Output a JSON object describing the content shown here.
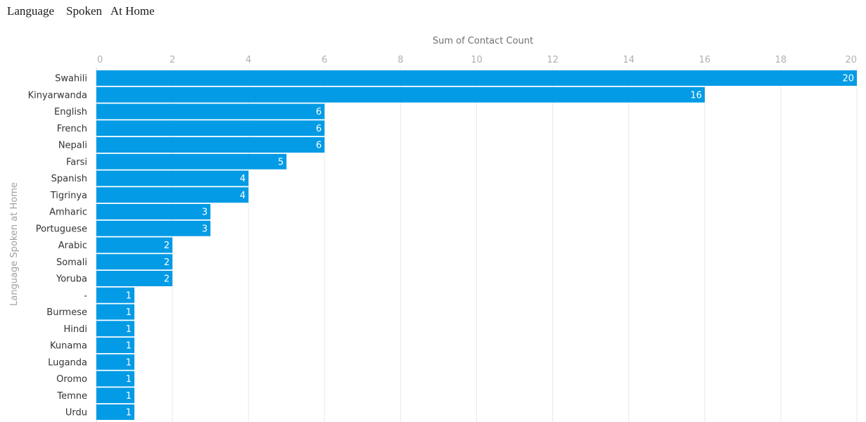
{
  "page": {
    "title": "Language    Spoken   At Home"
  },
  "chart_data": {
    "type": "bar",
    "orientation": "horizontal",
    "title": "",
    "xlabel": "Sum of Contact Count",
    "ylabel": "Language Spoken at Home",
    "xlim": [
      0,
      20
    ],
    "xticks": [
      0,
      2,
      4,
      6,
      8,
      10,
      12,
      14,
      16,
      18,
      20
    ],
    "grid": true,
    "categories": [
      "Swahili",
      "Kinyarwanda",
      "English",
      "French",
      "Nepali",
      "Farsi",
      "Spanish",
      "Tigrinya",
      "Amharic",
      "Portuguese",
      "Arabic",
      "Somali",
      "Yoruba",
      "-",
      "Burmese",
      "Hindi",
      "Kunama",
      "Luganda",
      "Oromo",
      "Temne",
      "Urdu"
    ],
    "values": [
      20,
      16,
      6,
      6,
      6,
      5,
      4,
      4,
      3,
      3,
      2,
      2,
      2,
      1,
      1,
      1,
      1,
      1,
      1,
      1,
      1
    ],
    "bar_color": "#039be5",
    "label_color": "#ffffff"
  }
}
